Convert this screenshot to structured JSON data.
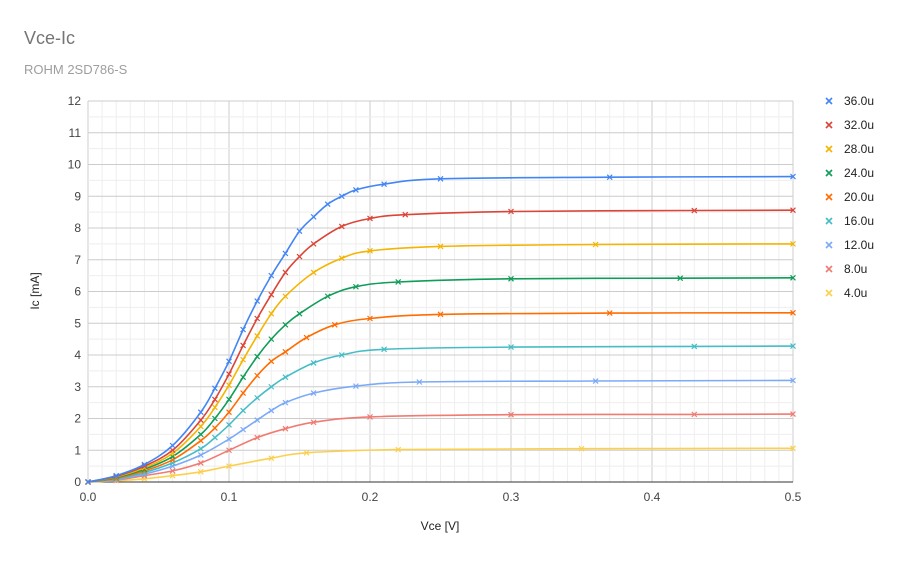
{
  "chart_data": {
    "type": "line",
    "title": "Vce-Ic",
    "subtitle": "ROHM 2SD786-S",
    "xlabel": "Vce [V]",
    "ylabel": "Ic [mA]",
    "xlim": [
      0,
      0.5
    ],
    "ylim": [
      0,
      12
    ],
    "x_ticks": [
      "0.0",
      "0.1",
      "0.2",
      "0.3",
      "0.4",
      "0.5"
    ],
    "y_ticks": [
      "0",
      "1",
      "2",
      "3",
      "4",
      "5",
      "6",
      "7",
      "8",
      "9",
      "10",
      "11",
      "12"
    ],
    "grid": true,
    "legend_position": "right",
    "series": [
      {
        "name": "36.0u",
        "color": "#4285f4",
        "x": [
          0,
          0.02,
          0.04,
          0.06,
          0.08,
          0.09,
          0.1,
          0.11,
          0.12,
          0.13,
          0.14,
          0.15,
          0.16,
          0.17,
          0.18,
          0.19,
          0.21,
          0.25,
          0.37,
          0.5
        ],
        "y": [
          0,
          0.2,
          0.55,
          1.15,
          2.2,
          2.95,
          3.8,
          4.8,
          5.7,
          6.5,
          7.2,
          7.9,
          8.35,
          8.75,
          9.0,
          9.2,
          9.38,
          9.55,
          9.6,
          9.62
        ]
      },
      {
        "name": "32.0u",
        "color": "#db4437",
        "x": [
          0,
          0.02,
          0.04,
          0.06,
          0.08,
          0.09,
          0.1,
          0.11,
          0.12,
          0.13,
          0.14,
          0.15,
          0.16,
          0.18,
          0.2,
          0.225,
          0.3,
          0.43,
          0.5
        ],
        "y": [
          0,
          0.18,
          0.5,
          1.0,
          1.95,
          2.6,
          3.4,
          4.3,
          5.15,
          5.9,
          6.6,
          7.1,
          7.5,
          8.05,
          8.3,
          8.42,
          8.52,
          8.55,
          8.56
        ]
      },
      {
        "name": "28.0u",
        "color": "#f4b400",
        "x": [
          0,
          0.02,
          0.04,
          0.06,
          0.08,
          0.09,
          0.1,
          0.11,
          0.12,
          0.13,
          0.14,
          0.16,
          0.18,
          0.2,
          0.25,
          0.36,
          0.5
        ],
        "y": [
          0,
          0.16,
          0.45,
          0.9,
          1.75,
          2.35,
          3.05,
          3.85,
          4.6,
          5.3,
          5.85,
          6.6,
          7.05,
          7.28,
          7.42,
          7.48,
          7.5
        ]
      },
      {
        "name": "24.0u",
        "color": "#0f9d58",
        "x": [
          0,
          0.02,
          0.04,
          0.06,
          0.08,
          0.09,
          0.1,
          0.11,
          0.12,
          0.13,
          0.14,
          0.15,
          0.17,
          0.19,
          0.22,
          0.3,
          0.42,
          0.5
        ],
        "y": [
          0,
          0.14,
          0.4,
          0.8,
          1.5,
          2.0,
          2.6,
          3.3,
          3.95,
          4.5,
          4.95,
          5.3,
          5.85,
          6.15,
          6.3,
          6.4,
          6.42,
          6.43
        ]
      },
      {
        "name": "20.0u",
        "color": "#ff6d01",
        "x": [
          0,
          0.02,
          0.04,
          0.06,
          0.08,
          0.09,
          0.1,
          0.11,
          0.12,
          0.13,
          0.14,
          0.155,
          0.175,
          0.2,
          0.25,
          0.37,
          0.5
        ],
        "y": [
          0,
          0.12,
          0.35,
          0.7,
          1.3,
          1.7,
          2.2,
          2.8,
          3.35,
          3.8,
          4.1,
          4.55,
          4.95,
          5.15,
          5.28,
          5.32,
          5.33
        ]
      },
      {
        "name": "16.0u",
        "color": "#46bdc6",
        "x": [
          0,
          0.02,
          0.04,
          0.06,
          0.08,
          0.09,
          0.1,
          0.11,
          0.12,
          0.13,
          0.14,
          0.16,
          0.18,
          0.21,
          0.3,
          0.43,
          0.5
        ],
        "y": [
          0,
          0.1,
          0.3,
          0.6,
          1.05,
          1.4,
          1.8,
          2.25,
          2.65,
          3.0,
          3.3,
          3.75,
          4.0,
          4.18,
          4.25,
          4.27,
          4.28
        ]
      },
      {
        "name": "12.0u",
        "color": "#7baaf7",
        "x": [
          0,
          0.02,
          0.04,
          0.06,
          0.08,
          0.1,
          0.11,
          0.12,
          0.13,
          0.14,
          0.16,
          0.19,
          0.235,
          0.36,
          0.5
        ],
        "y": [
          0,
          0.08,
          0.25,
          0.5,
          0.85,
          1.35,
          1.65,
          1.95,
          2.25,
          2.5,
          2.8,
          3.02,
          3.15,
          3.18,
          3.2
        ]
      },
      {
        "name": "8.0u",
        "color": "#f07b72",
        "x": [
          0,
          0.02,
          0.04,
          0.06,
          0.08,
          0.1,
          0.12,
          0.14,
          0.16,
          0.2,
          0.3,
          0.43,
          0.5
        ],
        "y": [
          0,
          0.06,
          0.2,
          0.35,
          0.6,
          1.0,
          1.4,
          1.68,
          1.88,
          2.05,
          2.12,
          2.13,
          2.14
        ]
      },
      {
        "name": "4.0u",
        "color": "#fcd04f",
        "x": [
          0,
          0.02,
          0.04,
          0.06,
          0.08,
          0.1,
          0.13,
          0.155,
          0.22,
          0.35,
          0.5
        ],
        "y": [
          0,
          0.04,
          0.1,
          0.2,
          0.32,
          0.5,
          0.75,
          0.92,
          1.02,
          1.05,
          1.06
        ]
      }
    ]
  }
}
